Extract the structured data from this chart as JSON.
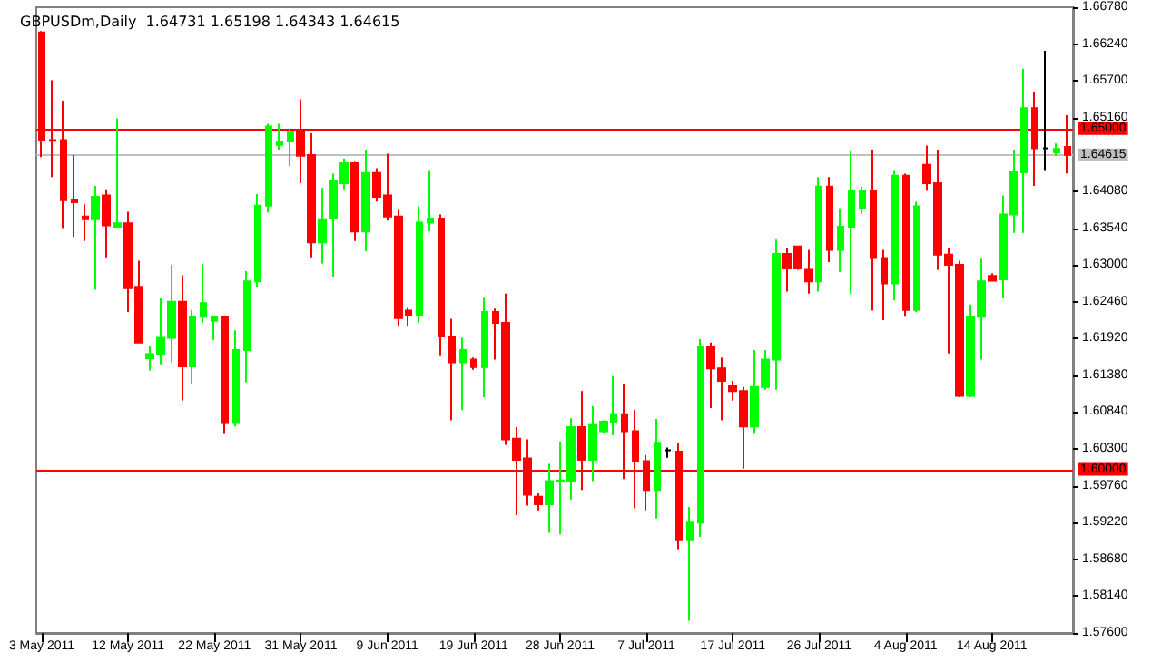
{
  "chart_data": {
    "type": "candlestick",
    "title": "GBPUSDm,Daily  1.64731 1.65198 1.64343 1.64615",
    "categories": [
      "3 May 2011",
      null,
      null,
      null,
      null,
      null,
      null,
      null,
      "12 May 2011",
      null,
      null,
      null,
      null,
      null,
      null,
      null,
      "22 May 2011",
      null,
      null,
      null,
      null,
      null,
      null,
      null,
      "31 May 2011",
      null,
      null,
      null,
      null,
      null,
      null,
      null,
      "9 Jun 2011",
      null,
      null,
      null,
      null,
      null,
      null,
      null,
      "19 Jun 2011",
      null,
      null,
      null,
      null,
      null,
      null,
      null,
      "28 Jun 2011",
      null,
      null,
      null,
      null,
      null,
      null,
      null,
      "7 Jul 2011",
      null,
      null,
      null,
      null,
      null,
      null,
      null,
      "17 Jul 2011",
      null,
      null,
      null,
      null,
      null,
      null,
      null,
      "26 Jul 2011",
      null,
      null,
      null,
      null,
      null,
      null,
      null,
      "4 Aug 2011",
      null,
      null,
      null,
      null,
      null,
      null,
      null,
      "14 Aug 2011",
      null,
      null,
      null,
      null,
      null,
      null,
      null
    ],
    "ohlc": [
      [
        1.6641,
        1.6643,
        1.6458,
        1.6483
      ],
      [
        1.6483,
        1.6571,
        1.6429,
        1.6482
      ],
      [
        1.6483,
        1.6541,
        1.6354,
        1.6395
      ],
      [
        1.6396,
        1.6461,
        1.6341,
        1.6392
      ],
      [
        1.6371,
        1.6389,
        1.6335,
        1.6367
      ],
      [
        1.6367,
        1.6416,
        1.6264,
        1.64
      ],
      [
        1.6402,
        1.6411,
        1.6311,
        1.6358
      ],
      [
        1.6356,
        1.6515,
        1.6356,
        1.6361
      ],
      [
        1.6361,
        1.6378,
        1.6231,
        1.6266
      ],
      [
        1.6268,
        1.6306,
        1.6185,
        1.6186
      ],
      [
        1.6163,
        1.6181,
        1.6145,
        1.6169
      ],
      [
        1.6169,
        1.6251,
        1.6154,
        1.6193
      ],
      [
        1.6193,
        1.63,
        1.6157,
        1.6246
      ],
      [
        1.6246,
        1.6285,
        1.6101,
        1.6151
      ],
      [
        1.6151,
        1.6234,
        1.6126,
        1.6224
      ],
      [
        1.6224,
        1.6301,
        1.6215,
        1.6244
      ],
      [
        1.6218,
        1.6226,
        1.619,
        1.6224
      ],
      [
        1.6224,
        1.6226,
        1.6052,
        1.6068
      ],
      [
        1.6068,
        1.6204,
        1.6063,
        1.6175
      ],
      [
        1.6175,
        1.6291,
        1.6128,
        1.6276
      ],
      [
        1.6276,
        1.6404,
        1.6268,
        1.6387
      ],
      [
        1.6387,
        1.6507,
        1.6377,
        1.6503
      ],
      [
        1.6476,
        1.6507,
        1.6469,
        1.6481
      ],
      [
        1.6481,
        1.6499,
        1.6445,
        1.6495
      ],
      [
        1.6495,
        1.6543,
        1.642,
        1.646
      ],
      [
        1.6461,
        1.6493,
        1.6311,
        1.6333
      ],
      [
        1.6333,
        1.6413,
        1.6302,
        1.6367
      ],
      [
        1.6368,
        1.6434,
        1.6282,
        1.6423
      ],
      [
        1.642,
        1.6456,
        1.6411,
        1.6449
      ],
      [
        1.6449,
        1.6451,
        1.6335,
        1.6349
      ],
      [
        1.6349,
        1.6469,
        1.632,
        1.6435
      ],
      [
        1.6435,
        1.6442,
        1.6393,
        1.64
      ],
      [
        1.6402,
        1.6463,
        1.6365,
        1.6371
      ],
      [
        1.6371,
        1.6381,
        1.621,
        1.6222
      ],
      [
        1.6233,
        1.6237,
        1.621,
        1.6226
      ],
      [
        1.6226,
        1.6386,
        1.6215,
        1.6362
      ],
      [
        1.6362,
        1.6438,
        1.6349,
        1.6368
      ],
      [
        1.6368,
        1.6374,
        1.6166,
        1.6195
      ],
      [
        1.6195,
        1.6221,
        1.6072,
        1.6157
      ],
      [
        1.6157,
        1.6193,
        1.6087,
        1.6175
      ],
      [
        1.6161,
        1.6164,
        1.6146,
        1.615
      ],
      [
        1.615,
        1.6252,
        1.6106,
        1.6231
      ],
      [
        1.6231,
        1.6236,
        1.6161,
        1.6215
      ],
      [
        1.6215,
        1.6258,
        1.6036,
        1.6044
      ],
      [
        1.6045,
        1.6062,
        1.5933,
        1.6014
      ],
      [
        1.6016,
        1.6044,
        1.5947,
        1.5963
      ],
      [
        1.596,
        1.5965,
        1.594,
        1.5949
      ],
      [
        1.5949,
        1.6008,
        1.5907,
        1.5983
      ],
      [
        1.5983,
        1.6041,
        1.5905,
        1.5984
      ],
      [
        1.5983,
        1.6075,
        1.5956,
        1.6062
      ],
      [
        1.6062,
        1.6115,
        1.597,
        1.6014
      ],
      [
        1.6014,
        1.6093,
        1.5983,
        1.6065
      ],
      [
        1.6056,
        1.6072,
        1.6054,
        1.607
      ],
      [
        1.6069,
        1.6137,
        1.605,
        1.6081
      ],
      [
        1.6081,
        1.6126,
        1.5986,
        1.6056
      ],
      [
        1.6056,
        1.6087,
        1.5943,
        1.6012
      ],
      [
        1.6012,
        1.6021,
        1.594,
        1.597
      ],
      [
        1.597,
        1.6074,
        1.5928,
        1.6039
      ],
      [
        1.6028,
        1.6032,
        1.6017,
        1.6028
      ],
      [
        1.6026,
        1.6039,
        1.5883,
        1.5896
      ],
      [
        1.5896,
        1.5945,
        1.5778,
        1.5922
      ],
      [
        1.5922,
        1.6191,
        1.5901,
        1.6179
      ],
      [
        1.6179,
        1.6186,
        1.609,
        1.6148
      ],
      [
        1.6148,
        1.6164,
        1.6072,
        1.613
      ],
      [
        1.6123,
        1.613,
        1.6101,
        1.6115
      ],
      [
        1.6115,
        1.6121,
        1.6001,
        1.6063
      ],
      [
        1.6063,
        1.6175,
        1.6052,
        1.6121
      ],
      [
        1.6121,
        1.6175,
        1.6117,
        1.6161
      ],
      [
        1.6161,
        1.6337,
        1.6117,
        1.6316
      ],
      [
        1.6316,
        1.6324,
        1.6261,
        1.6295
      ],
      [
        1.6327,
        1.6328,
        1.6293,
        1.6295
      ],
      [
        1.6293,
        1.6322,
        1.6258,
        1.6276
      ],
      [
        1.6276,
        1.6429,
        1.6261,
        1.6415
      ],
      [
        1.6415,
        1.6429,
        1.6304,
        1.6322
      ],
      [
        1.6322,
        1.6383,
        1.629,
        1.6356
      ],
      [
        1.6356,
        1.6467,
        1.6257,
        1.6409
      ],
      [
        1.6384,
        1.6415,
        1.6375,
        1.6408
      ],
      [
        1.6408,
        1.6469,
        1.6233,
        1.631
      ],
      [
        1.631,
        1.6322,
        1.6219,
        1.6273
      ],
      [
        1.6273,
        1.6438,
        1.6248,
        1.6431
      ],
      [
        1.6431,
        1.6434,
        1.6224,
        1.6234
      ],
      [
        1.6234,
        1.6393,
        1.6231,
        1.6386
      ],
      [
        1.6447,
        1.6475,
        1.6409,
        1.642
      ],
      [
        1.642,
        1.6469,
        1.6293,
        1.6315
      ],
      [
        1.6315,
        1.6324,
        1.617,
        1.63
      ],
      [
        1.63,
        1.6306,
        1.6106,
        1.6108
      ],
      [
        1.6108,
        1.6242,
        1.6106,
        1.6224
      ],
      [
        1.6224,
        1.6309,
        1.6161,
        1.6276
      ],
      [
        1.6284,
        1.6288,
        1.6276,
        1.6277
      ],
      [
        1.6279,
        1.6402,
        1.6251,
        1.6374
      ],
      [
        1.6374,
        1.6469,
        1.6347,
        1.6436
      ],
      [
        1.6436,
        1.6588,
        1.6347,
        1.653
      ],
      [
        1.653,
        1.6554,
        1.6416,
        1.6471
      ],
      [
        1.6471,
        1.6614,
        1.6438,
        1.6471
      ],
      [
        1.6465,
        1.6478,
        1.646,
        1.647
      ],
      [
        1.64731,
        1.65198,
        1.64343,
        1.64615
      ]
    ],
    "colors": [
      "#ff0000",
      "#ff0000",
      "#ff0000",
      "#ff0000",
      "#ff0000",
      "#00ff00",
      "#ff0000",
      "#00ff00",
      "#ff0000",
      "#ff0000",
      "#00ff00",
      "#00ff00",
      "#00ff00",
      "#ff0000",
      "#00ff00",
      "#00ff00",
      "#00ff00",
      "#ff0000",
      "#00ff00",
      "#00ff00",
      "#00ff00",
      "#00ff00",
      "#00ff00",
      "#00ff00",
      "#ff0000",
      "#ff0000",
      "#00ff00",
      "#00ff00",
      "#00ff00",
      "#ff0000",
      "#00ff00",
      "#ff0000",
      "#ff0000",
      "#ff0000",
      "#ff0000",
      "#00ff00",
      "#00ff00",
      "#ff0000",
      "#ff0000",
      "#00ff00",
      "#ff0000",
      "#00ff00",
      "#ff0000",
      "#ff0000",
      "#ff0000",
      "#ff0000",
      "#ff0000",
      "#00ff00",
      "#00ff00",
      "#00ff00",
      "#ff0000",
      "#00ff00",
      "#00ff00",
      "#00ff00",
      "#ff0000",
      "#ff0000",
      "#ff0000",
      "#00ff00",
      "#000000",
      "#ff0000",
      "#00ff00",
      "#00ff00",
      "#ff0000",
      "#ff0000",
      "#ff0000",
      "#ff0000",
      "#00ff00",
      "#00ff00",
      "#00ff00",
      "#ff0000",
      "#ff0000",
      "#ff0000",
      "#00ff00",
      "#ff0000",
      "#00ff00",
      "#00ff00",
      "#00ff00",
      "#ff0000",
      "#ff0000",
      "#00ff00",
      "#ff0000",
      "#00ff00",
      "#ff0000",
      "#ff0000",
      "#ff0000",
      "#ff0000",
      "#00ff00",
      "#00ff00",
      "#ff0000",
      "#00ff00",
      "#00ff00",
      "#00ff00",
      "#ff0000",
      "#000000",
      "#00ff00",
      "#ff0000"
    ],
    "ylim": [
      1.576,
      1.6678
    ],
    "yticks": [
      {
        "value": 1.576,
        "label": "1.57600"
      },
      {
        "value": 1.5814,
        "label": "1.58140"
      },
      {
        "value": 1.5868,
        "label": "1.58680"
      },
      {
        "value": 1.5922,
        "label": "1.59220"
      },
      {
        "value": 1.5976,
        "label": "1.59760"
      },
      {
        "value": 1.603,
        "label": "1.60300"
      },
      {
        "value": 1.6084,
        "label": "1.60840"
      },
      {
        "value": 1.6138,
        "label": "1.61380"
      },
      {
        "value": 1.6192,
        "label": "1.61920"
      },
      {
        "value": 1.6246,
        "label": "1.62460"
      },
      {
        "value": 1.63,
        "label": "1.63000"
      },
      {
        "value": 1.6354,
        "label": "1.63540"
      },
      {
        "value": 1.6408,
        "label": "1.64080"
      },
      {
        "value": 1.6516,
        "label": "1.65160"
      },
      {
        "value": 1.657,
        "label": "1.65700"
      },
      {
        "value": 1.6624,
        "label": "1.66240"
      },
      {
        "value": 1.6678,
        "label": "1.66780"
      }
    ],
    "ref_lines": [
      {
        "axis": "y",
        "value": 1.65,
        "label": "1.65000",
        "color": "#ff0000"
      },
      {
        "axis": "y",
        "value": 1.6,
        "label": "1.60000",
        "color": "#ff0000"
      },
      {
        "axis": "y",
        "value": 1.64615,
        "label": "1.64615",
        "color": "#c0c0c0"
      }
    ],
    "grid": false
  }
}
